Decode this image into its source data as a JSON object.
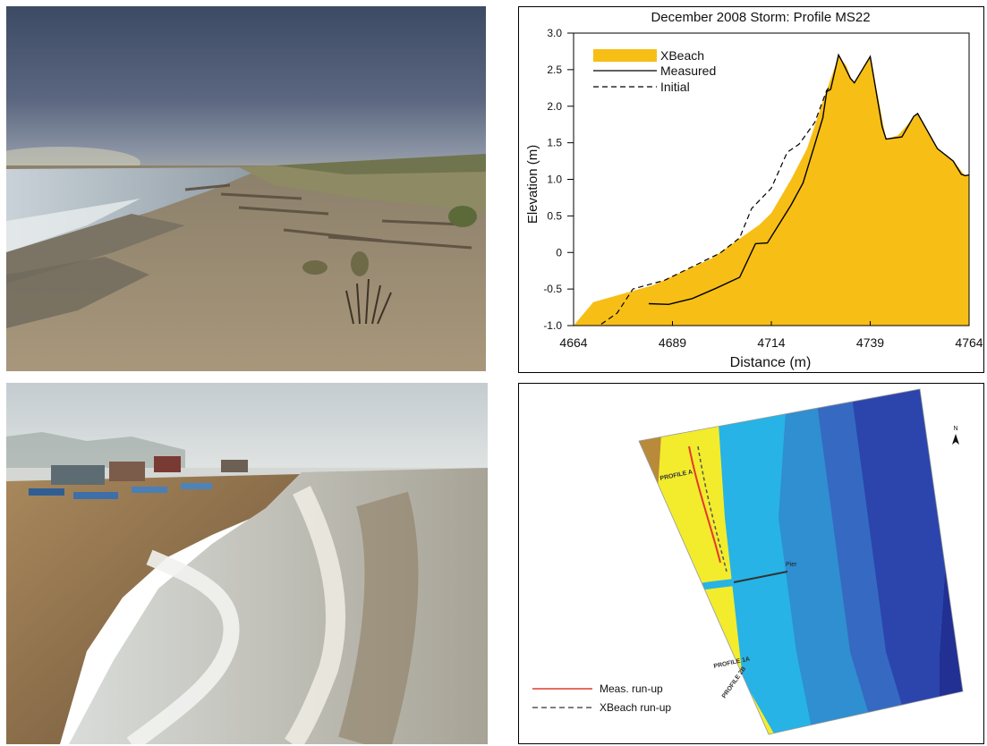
{
  "chart_data": {
    "type": "area",
    "title": "December 2008 Storm: Profile MS22",
    "xlabel": "Distance (m)",
    "ylabel": "Elevation (m)",
    "xlim": [
      4664,
      4764
    ],
    "ylim": [
      -1.0,
      3.0
    ],
    "x_ticks": [
      "4664",
      "4689",
      "4714",
      "4739",
      "4764"
    ],
    "y_ticks": [
      "-1.0",
      "-0.5",
      "0",
      "0.5",
      "1.0",
      "1.5",
      "2.0",
      "2.5",
      "3.0"
    ],
    "legend_position": "top-left",
    "colors": {
      "xbeach": "#f7be16",
      "measured": "#000000",
      "initial": "#000000"
    },
    "series": [
      {
        "name": "XBeach",
        "style": "filled-area",
        "x": [
          4664,
          4669,
          4684,
          4699,
          4711,
          4714,
          4719,
          4723,
          4728,
          4731,
          4733,
          4734,
          4735,
          4739,
          4743,
          4746,
          4751,
          4756,
          4760,
          4763,
          4764
        ],
        "y": [
          -1.0,
          -0.68,
          -0.45,
          -0.08,
          0.38,
          0.54,
          1.0,
          1.42,
          2.22,
          2.68,
          2.55,
          2.4,
          2.33,
          2.68,
          1.55,
          1.6,
          1.9,
          1.42,
          1.25,
          1.05,
          1.05
        ]
      },
      {
        "name": "Measured",
        "style": "solid",
        "x": [
          4683,
          4688,
          4694,
          4700,
          4706,
          4710,
          4713,
          4719,
          4722,
          4725,
          4727,
          4728,
          4729,
          4731,
          4732,
          4734,
          4735,
          4739,
          4742,
          4743,
          4747,
          4750,
          4751,
          4756,
          4760,
          4762,
          4763,
          4764
        ],
        "y": [
          -0.7,
          -0.71,
          -0.63,
          -0.49,
          -0.34,
          0.12,
          0.13,
          0.65,
          0.95,
          1.48,
          1.84,
          2.2,
          2.23,
          2.7,
          2.6,
          2.38,
          2.32,
          2.68,
          1.72,
          1.55,
          1.58,
          1.86,
          1.9,
          1.42,
          1.25,
          1.07,
          1.05,
          1.06
        ]
      },
      {
        "name": "Initial",
        "style": "dashed",
        "x": [
          4671,
          4675,
          4679,
          4687,
          4701,
          4706,
          4709,
          4714,
          4718,
          4721,
          4725,
          4728,
          4729
        ],
        "y": [
          -0.98,
          -0.83,
          -0.5,
          -0.38,
          -0.01,
          0.2,
          0.6,
          0.88,
          1.37,
          1.48,
          1.78,
          2.22,
          2.28
        ]
      }
    ]
  },
  "map": {
    "labels": {
      "profile_a": "PROFILE A",
      "profile_1a": "PROFILE 1A",
      "profile_2b": "PROFILE 2B",
      "pier": "Pier",
      "north": "N",
      "meas_runup": "Meas. run-up",
      "xbeach_runup": "XBeach run-up"
    },
    "colors": {
      "beach": "#f3ec2c",
      "cliff": "#b88a3a",
      "shallow": "#27b3e6",
      "mid": "#2f8fd0",
      "mid2": "#3669c2",
      "deep": "#2b45ad",
      "deepest": "#222f93",
      "meas_runup": "#e33a2c",
      "xbeach_runup": "#555555"
    }
  },
  "photos": {
    "top_left_icon": "beach-storm-photo",
    "bottom_left_icon": "surf-beach-photo"
  }
}
